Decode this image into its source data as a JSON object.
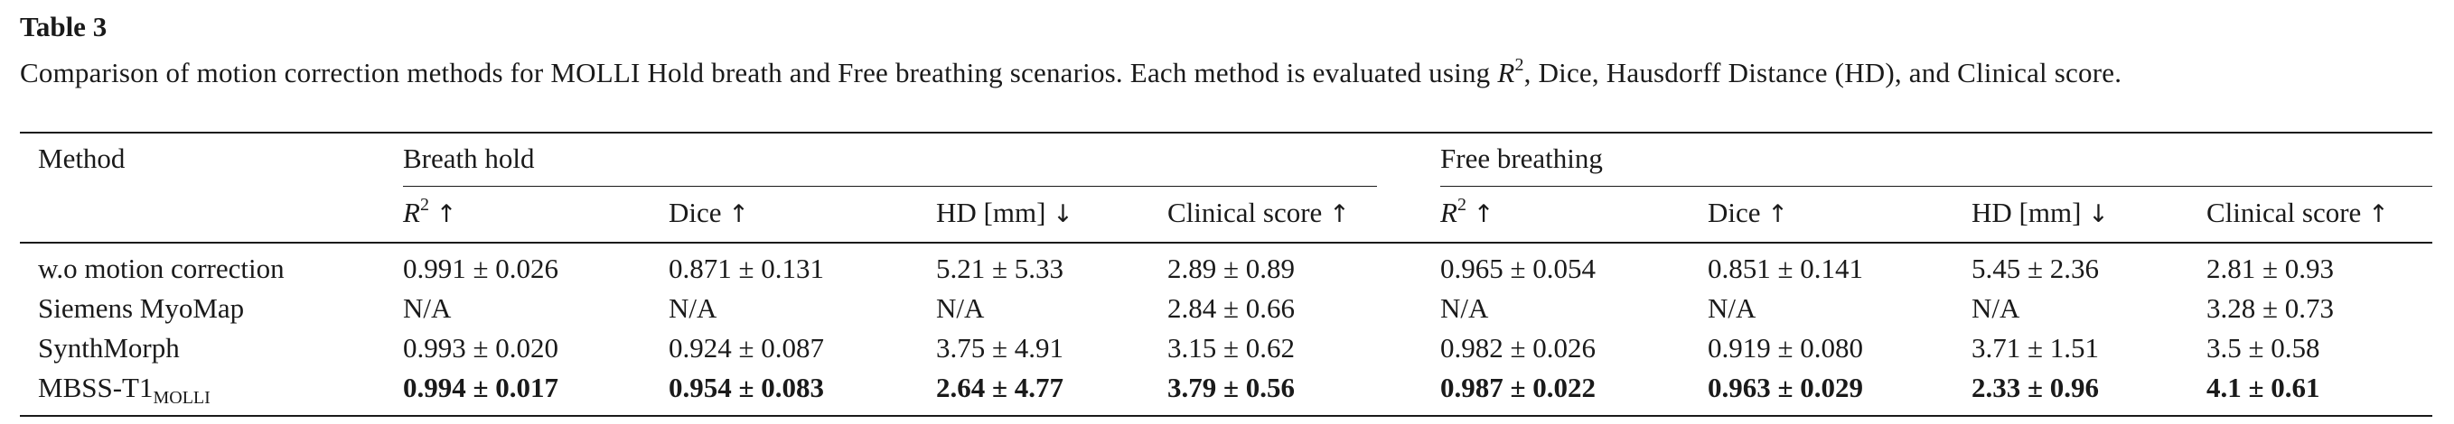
{
  "table_label": "Table 3",
  "caption": {
    "pre": "Comparison of motion correction methods for MOLLI Hold breath and Free breathing scenarios. Each method is evaluated using ",
    "r": "R",
    "sup": "2",
    "post": ", Dice, Hausdorff Distance (HD), and Clinical score."
  },
  "header": {
    "method": "Method",
    "group_breath_hold": "Breath hold",
    "group_free_breathing": "Free breathing",
    "metrics": [
      {
        "base": "R",
        "sup": "2",
        "arrow": "↑"
      },
      {
        "base": "Dice",
        "sup": "",
        "arrow": "↑"
      },
      {
        "base": "HD [mm]",
        "sup": "",
        "arrow": "↓"
      },
      {
        "base": "Clinical score",
        "sup": "",
        "arrow": "↑"
      }
    ]
  },
  "rows": [
    {
      "method": "w.o motion correction",
      "method_sub": "",
      "bold": false,
      "values": [
        "0.991 ± 0.026",
        "0.871 ± 0.131",
        "5.21 ± 5.33",
        "2.89 ± 0.89",
        "0.965 ± 0.054",
        "0.851 ± 0.141",
        "5.45 ± 2.36",
        "2.81 ± 0.93"
      ]
    },
    {
      "method": "Siemens MyoMap",
      "method_sub": "",
      "bold": false,
      "values": [
        "N/A",
        "N/A",
        "N/A",
        "2.84 ± 0.66",
        "N/A",
        "N/A",
        "N/A",
        "3.28 ± 0.73"
      ]
    },
    {
      "method": "SynthMorph",
      "method_sub": "",
      "bold": false,
      "values": [
        "0.993 ± 0.020",
        "0.924 ± 0.087",
        "3.75 ± 4.91",
        "3.15 ± 0.62",
        "0.982 ± 0.026",
        "0.919 ± 0.080",
        "3.71 ± 1.51",
        "3.5 ± 0.58"
      ]
    },
    {
      "method": "MBSS-T1",
      "method_sub": "MOLLI",
      "bold": true,
      "values": [
        "0.994 ± 0.017",
        "0.954 ± 0.083",
        "2.64 ± 4.77",
        "3.79 ± 0.56",
        "0.987 ± 0.022",
        "0.963 ± 0.029",
        "2.33 ± 0.96",
        "4.1 ± 0.61"
      ]
    }
  ]
}
